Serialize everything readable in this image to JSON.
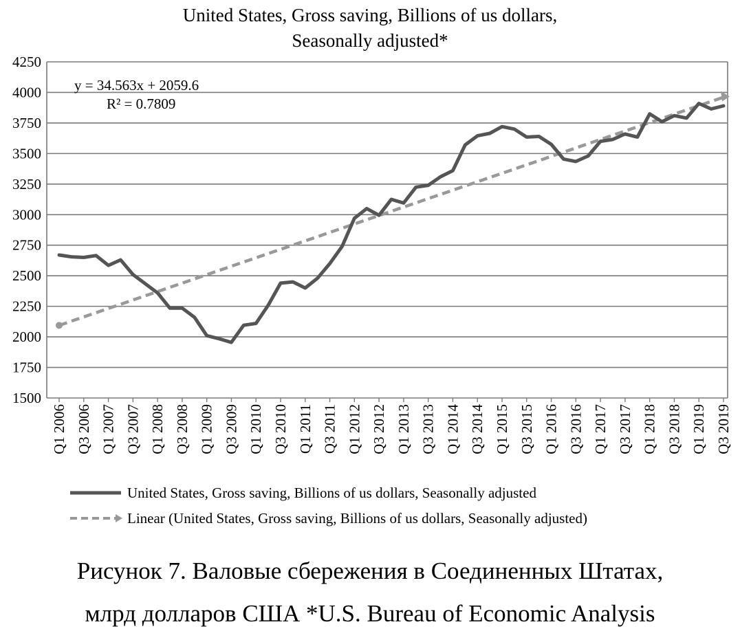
{
  "chart_data": {
    "type": "line",
    "title_lines": [
      "United States, Gross saving, Billions of us dollars,",
      "Seasonally adjusted*"
    ],
    "xlabel": "",
    "ylabel": "",
    "ylim": [
      1500,
      4250
    ],
    "y_ticks": [
      "1500",
      "1750",
      "2000",
      "2250",
      "2500",
      "2750",
      "3000",
      "3250",
      "3500",
      "3750",
      "4000",
      "4250"
    ],
    "x_tick_labels": [
      "Q1 2006",
      "Q3 2006",
      "Q1 2007",
      "Q3 2007",
      "Q1 2008",
      "Q3 2008",
      "Q1 2009",
      "Q3 2009",
      "Q1 2010",
      "Q3 2010",
      "Q1 2011",
      "Q3 2011",
      "Q1 2012",
      "Q3 2012",
      "Q1 2013",
      "Q3 2013",
      "Q1 2014",
      "Q3 2014",
      "Q1 2015",
      "Q3 2015",
      "Q1 2016",
      "Q3 2016",
      "Q1 2017",
      "Q3 2017",
      "Q1 2018",
      "Q3 2018",
      "Q1 2019",
      "Q3 2019"
    ],
    "grid": true,
    "legend_placement": "bottom",
    "series": [
      {
        "name": "United States, Gross saving, Billions of us dollars, Seasonally adjusted",
        "style": "solid",
        "color": "#555555",
        "values": [
          2670,
          2655,
          2650,
          2665,
          2585,
          2630,
          2510,
          2435,
          2360,
          2235,
          2235,
          2160,
          2010,
          1985,
          1955,
          2095,
          2110,
          2260,
          2440,
          2450,
          2400,
          2480,
          2600,
          2740,
          2970,
          3050,
          2995,
          3125,
          3095,
          3225,
          3240,
          3310,
          3360,
          3570,
          3645,
          3665,
          3720,
          3700,
          3635,
          3640,
          3575,
          3455,
          3435,
          3480,
          3600,
          3615,
          3660,
          3635,
          3825,
          3760,
          3810,
          3790,
          3910,
          3865,
          3890
        ]
      }
    ],
    "trendline": {
      "name": "Linear (United States, Gross saving, Billions of us dollars, Seasonally adjusted)",
      "style": "dashed",
      "color": "#999999",
      "slope": 34.563,
      "intercept": 2059.6,
      "equation": "y = 34.563x + 2059.6",
      "r_squared": "R² = 0.7809"
    }
  },
  "caption": {
    "line1": "Рисунок 7. Валовые сбережения в Соединенных Штатах,",
    "line2": "млрд долларов США *U.S. Bureau of Economic Analysis"
  }
}
